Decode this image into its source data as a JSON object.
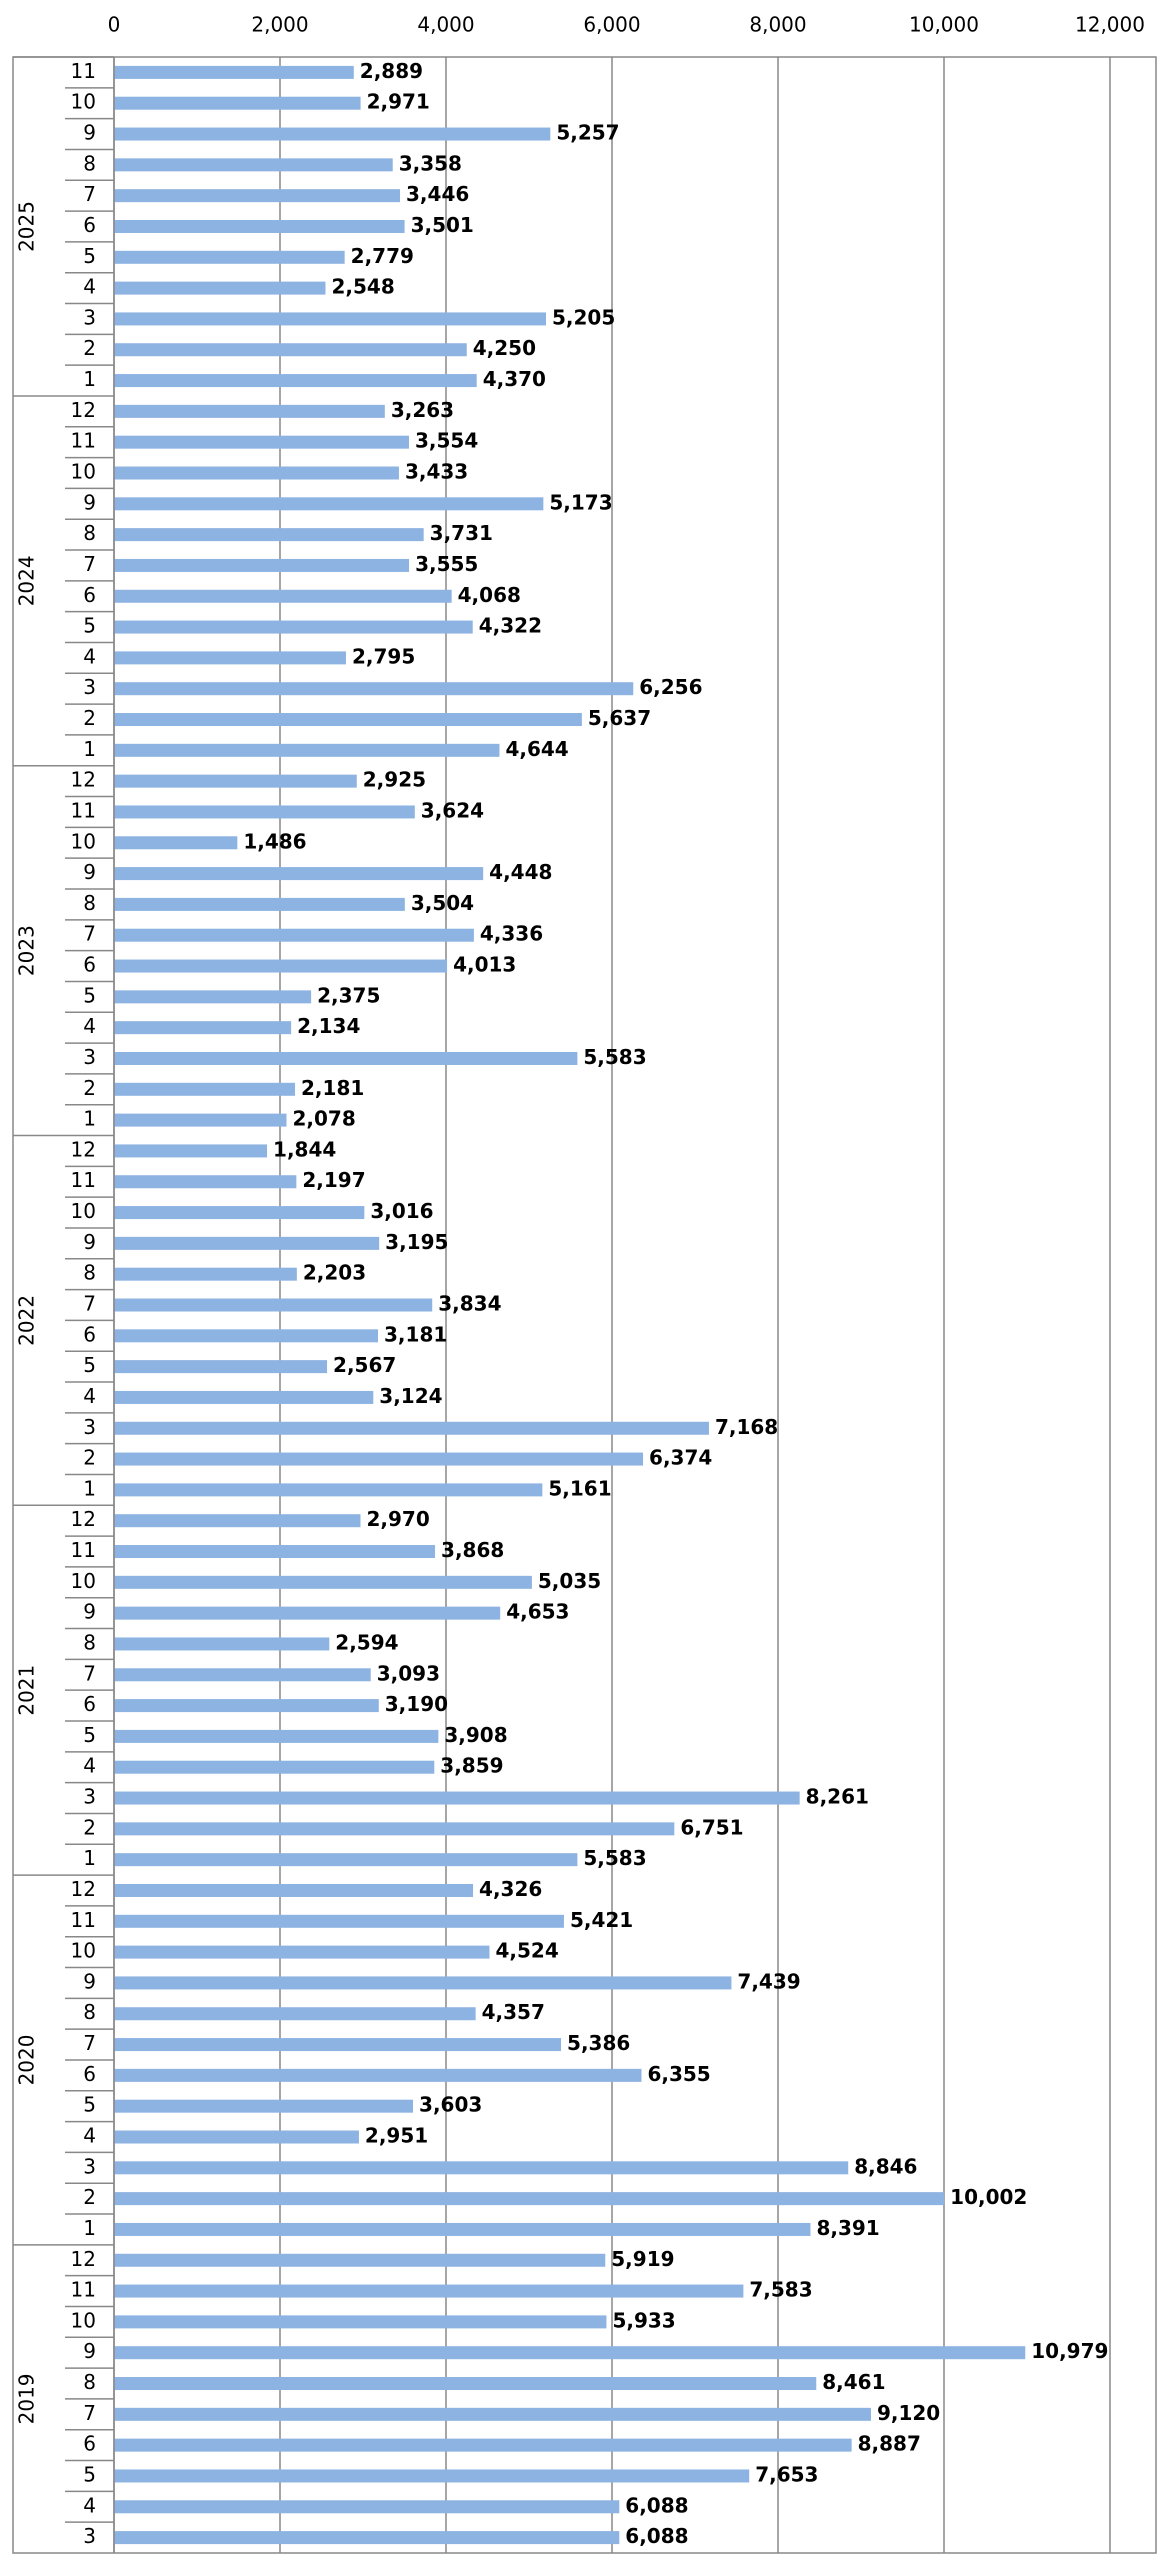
{
  "chart_data": {
    "type": "bar",
    "orientation": "horizontal",
    "color": "#8db3e2",
    "grid": true,
    "xlim": [
      0,
      12000
    ],
    "xticks": [
      0,
      {
        "value": 2000,
        "label": "2,000"
      },
      {
        "value": 4000,
        "label": "4,000"
      },
      {
        "value": 6000,
        "label": "6,000"
      },
      {
        "value": 8000,
        "label": "8,000"
      },
      {
        "value": 10000,
        "label": "10,000"
      },
      {
        "value": 12000,
        "label": "12,000"
      }
    ],
    "groups": [
      {
        "name": "2025",
        "categories": [
          "11",
          "10",
          "9",
          "8",
          "7",
          "6",
          "5",
          "4",
          "3",
          "2",
          "1"
        ],
        "values": [
          2889,
          2971,
          5257,
          3358,
          3446,
          3501,
          2779,
          2548,
          5205,
          4250,
          4370
        ],
        "value_labels": [
          "2,889",
          "2,971",
          "5,257",
          "3,358",
          "3,446",
          "3,501",
          "2,779",
          "2,548",
          "5,205",
          "4,250",
          "4,370"
        ]
      },
      {
        "name": "2024",
        "categories": [
          "12",
          "11",
          "10",
          "9",
          "8",
          "7",
          "6",
          "5",
          "4",
          "3",
          "2",
          "1"
        ],
        "values": [
          3263,
          3554,
          3433,
          5173,
          3731,
          3555,
          4068,
          4322,
          2795,
          6256,
          5637,
          4644
        ],
        "value_labels": [
          "3,263",
          "3,554",
          "3,433",
          "5,173",
          "3,731",
          "3,555",
          "4,068",
          "4,322",
          "2,795",
          "6,256",
          "5,637",
          "4,644"
        ]
      },
      {
        "name": "2023",
        "categories": [
          "12",
          "11",
          "10",
          "9",
          "8",
          "7",
          "6",
          "5",
          "4",
          "3",
          "2",
          "1"
        ],
        "values": [
          2925,
          3624,
          1486,
          4448,
          3504,
          4336,
          4013,
          2375,
          2134,
          5583,
          2181,
          2078
        ],
        "value_labels": [
          "2,925",
          "3,624",
          "1,486",
          "4,448",
          "3,504",
          "4,336",
          "4,013",
          "2,375",
          "2,134",
          "5,583",
          "2,181",
          "2,078"
        ]
      },
      {
        "name": "2022",
        "categories": [
          "12",
          "11",
          "10",
          "9",
          "8",
          "7",
          "6",
          "5",
          "4",
          "3",
          "2",
          "1"
        ],
        "values": [
          1844,
          2197,
          3016,
          3195,
          2203,
          3834,
          3181,
          2567,
          3124,
          7168,
          6374,
          5161
        ],
        "value_labels": [
          "1,844",
          "2,197",
          "3,016",
          "3,195",
          "2,203",
          "3,834",
          "3,181",
          "2,567",
          "3,124",
          "7,168",
          "6,374",
          "5,161"
        ]
      },
      {
        "name": "2021",
        "categories": [
          "12",
          "11",
          "10",
          "9",
          "8",
          "7",
          "6",
          "5",
          "4",
          "3",
          "2",
          "1"
        ],
        "values": [
          2970,
          3868,
          5035,
          4653,
          2594,
          3093,
          3190,
          3908,
          3859,
          8261,
          6751,
          5583
        ],
        "value_labels": [
          "2,970",
          "3,868",
          "5,035",
          "4,653",
          "2,594",
          "3,093",
          "3,190",
          "3,908",
          "3,859",
          "8,261",
          "6,751",
          "5,583"
        ]
      },
      {
        "name": "2020",
        "categories": [
          "12",
          "11",
          "10",
          "9",
          "8",
          "7",
          "6",
          "5",
          "4",
          "3",
          "2",
          "1"
        ],
        "values": [
          4326,
          5421,
          4524,
          7439,
          4357,
          5386,
          6355,
          3603,
          2951,
          8846,
          10002,
          8391
        ],
        "value_labels": [
          "4,326",
          "5,421",
          "4,524",
          "7,439",
          "4,357",
          "5,386",
          "6,355",
          "3,603",
          "2,951",
          "8,846",
          "10,002",
          "8,391"
        ]
      },
      {
        "name": "2019",
        "categories": [
          "12",
          "11",
          "10",
          "9",
          "8",
          "7",
          "6",
          "5",
          "4",
          "3"
        ],
        "values": [
          5919,
          7583,
          5933,
          10979,
          8461,
          9120,
          8887,
          7653,
          6088,
          6088
        ],
        "value_labels": [
          "5,919",
          "7,583",
          "5,933",
          "10,979",
          "8,461",
          "9,120",
          "8,887",
          "7,653",
          "6,088",
          "6,088"
        ]
      }
    ]
  }
}
